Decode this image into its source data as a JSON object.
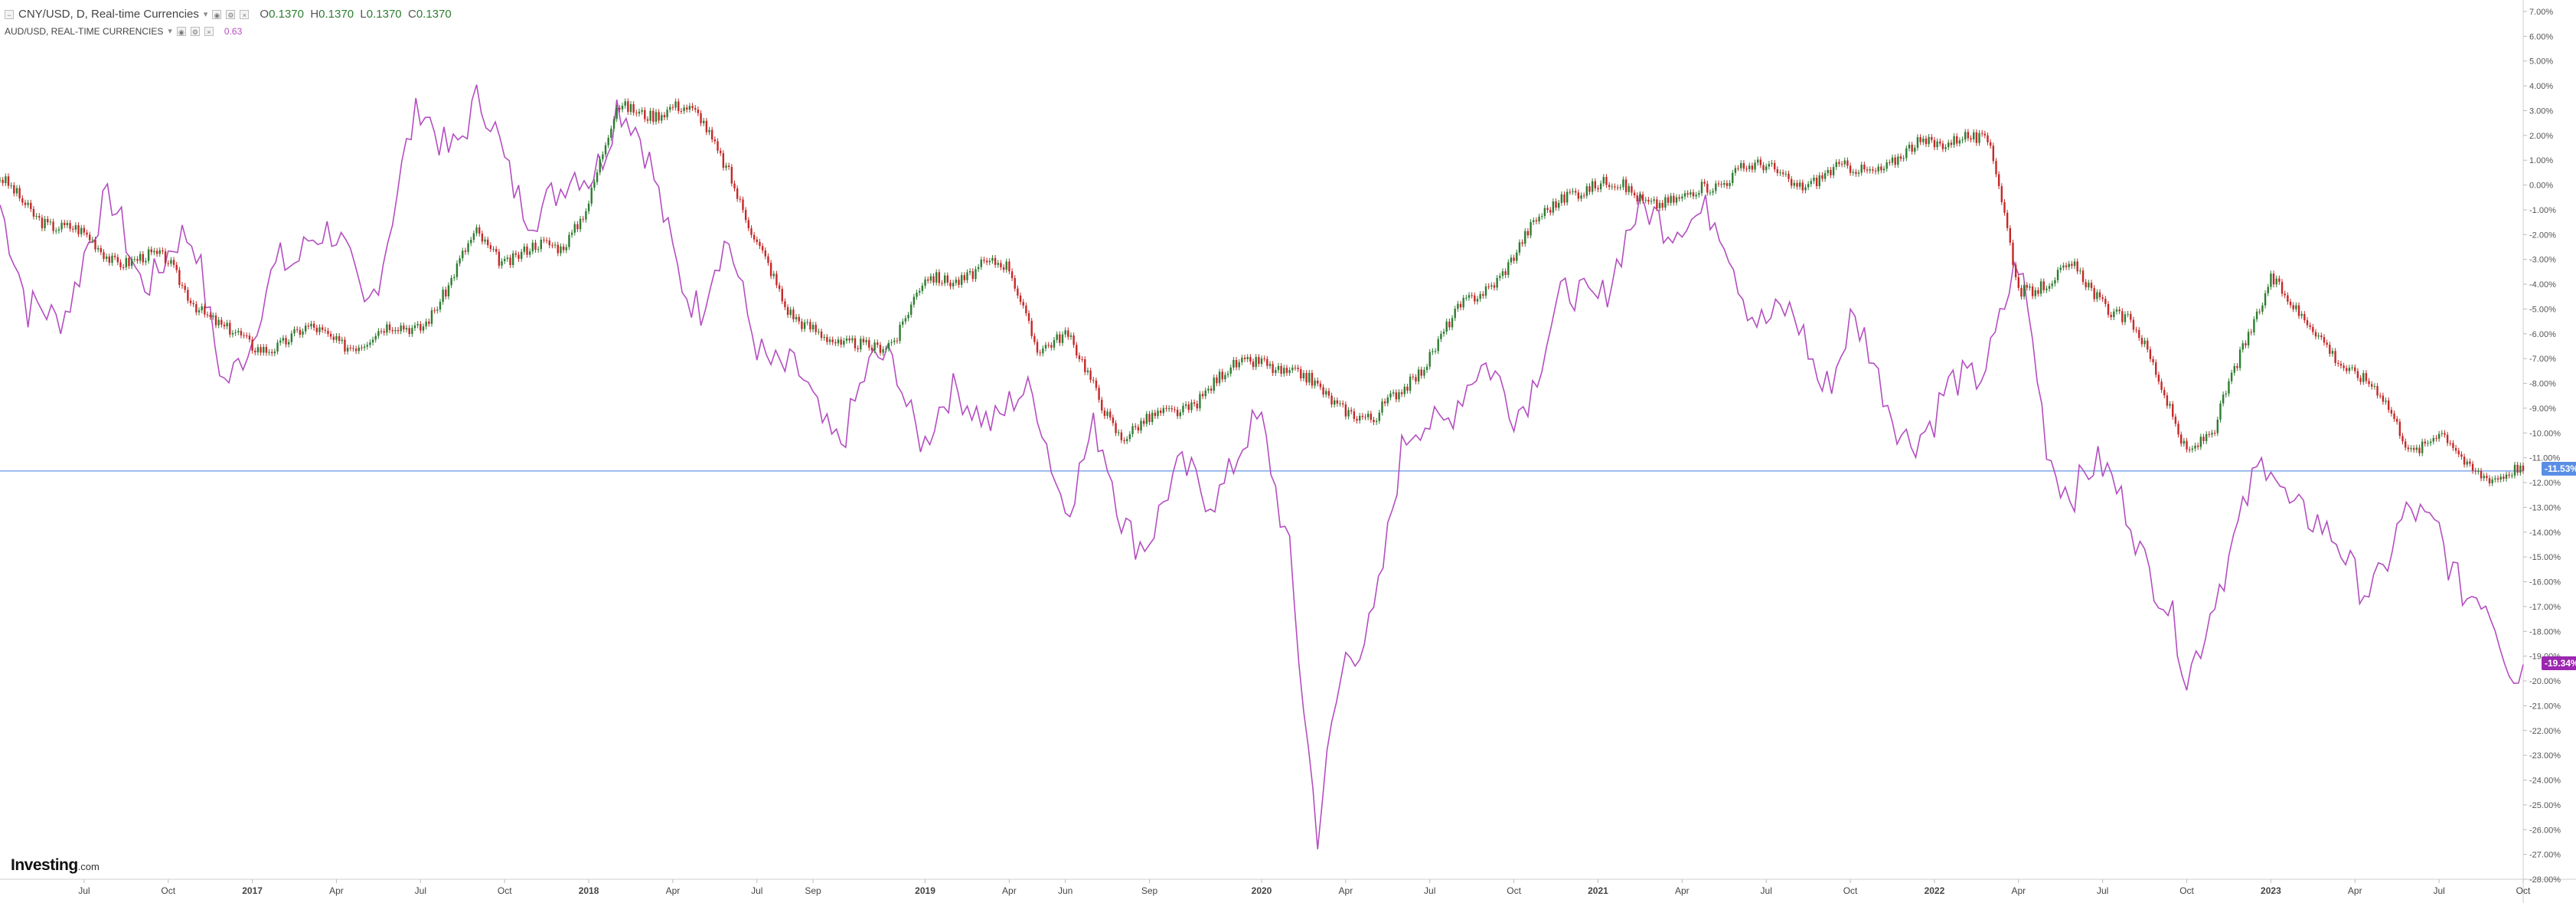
{
  "legend": {
    "main_title": "CNY/USD, D, Real-time Currencies",
    "ohlc": {
      "o_label": "O",
      "o": "0.1370",
      "h_label": "H",
      "h": "0.1370",
      "l_label": "L",
      "l": "0.1370",
      "c_label": "C",
      "c": "0.1370"
    },
    "secondary_title": "AUD/USD, REAL-TIME CURRENCIES",
    "secondary_value": "0.63"
  },
  "brand": {
    "name": "Investing",
    "suffix": ".com"
  },
  "price_tags": {
    "main": "-11.53%",
    "secondary": "-19.34%"
  },
  "colors": {
    "candle_up": "#2e7d32",
    "candle_down": "#c62828",
    "secondary_line": "#b44ec0",
    "price_line": "#7fa8e8",
    "tag_main": "#5a8ee6",
    "tag_sec": "#9c27b0"
  },
  "chart_data": {
    "type": "line",
    "ylabel_unit": "%",
    "ylim": [
      -28,
      7
    ],
    "y_ticks": [
      "7.00%",
      "6.00%",
      "5.00%",
      "4.00%",
      "3.00%",
      "2.00%",
      "1.00%",
      "0.00%",
      "-1.00%",
      "-2.00%",
      "-3.00%",
      "-4.00%",
      "-5.00%",
      "-6.00%",
      "-7.00%",
      "-8.00%",
      "-9.00%",
      "-10.00%",
      "-11.00%",
      "-12.00%",
      "-13.00%",
      "-14.00%",
      "-15.00%",
      "-16.00%",
      "-17.00%",
      "-18.00%",
      "-19.00%",
      "-20.00%",
      "-21.00%",
      "-22.00%",
      "-23.00%",
      "-24.00%",
      "-25.00%",
      "-26.00%",
      "-27.00%",
      "-28.00%"
    ],
    "x_ticks": [
      {
        "label": "Jul",
        "x": "2016-07"
      },
      {
        "label": "Oct",
        "x": "2016-10"
      },
      {
        "label": "2017",
        "x": "2017-01"
      },
      {
        "label": "Apr",
        "x": "2017-04"
      },
      {
        "label": "Jul",
        "x": "2017-07"
      },
      {
        "label": "Oct",
        "x": "2017-10"
      },
      {
        "label": "2018",
        "x": "2018-01"
      },
      {
        "label": "Apr",
        "x": "2018-04"
      },
      {
        "label": "Jul",
        "x": "2018-07"
      },
      {
        "label": "Sep",
        "x": "2018-09"
      },
      {
        "label": "2019",
        "x": "2019-01"
      },
      {
        "label": "Apr",
        "x": "2019-04"
      },
      {
        "label": "Jun",
        "x": "2019-06"
      },
      {
        "label": "Sep",
        "x": "2019-09"
      },
      {
        "label": "2020",
        "x": "2020-01"
      },
      {
        "label": "Apr",
        "x": "2020-04"
      },
      {
        "label": "Jul",
        "x": "2020-07"
      },
      {
        "label": "Oct",
        "x": "2020-10"
      },
      {
        "label": "2021",
        "x": "2021-01"
      },
      {
        "label": "Apr",
        "x": "2021-04"
      },
      {
        "label": "Jul",
        "x": "2021-07"
      },
      {
        "label": "Oct",
        "x": "2021-10"
      },
      {
        "label": "2022",
        "x": "2022-01"
      },
      {
        "label": "Apr",
        "x": "2022-04"
      },
      {
        "label": "Jul",
        "x": "2022-07"
      },
      {
        "label": "Oct",
        "x": "2022-10"
      },
      {
        "label": "2023",
        "x": "2023-01"
      },
      {
        "label": "Apr",
        "x": "2023-04"
      },
      {
        "label": "Jul",
        "x": "2023-07"
      },
      {
        "label": "Oct",
        "x": "2023-10"
      }
    ],
    "x_range": [
      "2016-04",
      "2023-10"
    ],
    "series": [
      {
        "name": "CNY/USD",
        "style": "candlestick",
        "points": [
          [
            "2016-04",
            0.0
          ],
          [
            "2016-06",
            -1.6
          ],
          [
            "2016-08",
            -2.8
          ],
          [
            "2016-10",
            -3.2
          ],
          [
            "2016-12",
            -6.0
          ],
          [
            "2017-01",
            -6.5
          ],
          [
            "2017-03",
            -6.0
          ],
          [
            "2017-05",
            -6.3
          ],
          [
            "2017-07",
            -5.5
          ],
          [
            "2017-08",
            -4.2
          ],
          [
            "2017-09",
            -2.0
          ],
          [
            "2017-10",
            -2.9
          ],
          [
            "2017-12",
            -2.5
          ],
          [
            "2018-01",
            -0.5
          ],
          [
            "2018-02",
            2.9
          ],
          [
            "2018-04",
            3.2
          ],
          [
            "2018-05",
            2.5
          ],
          [
            "2018-06",
            0.8
          ],
          [
            "2018-07",
            -2.5
          ],
          [
            "2018-08",
            -5.0
          ],
          [
            "2018-09",
            -5.5
          ],
          [
            "2018-10",
            -6.8
          ],
          [
            "2018-12",
            -6.0
          ],
          [
            "2019-01",
            -4.0
          ],
          [
            "2019-03",
            -3.3
          ],
          [
            "2019-04",
            -3.5
          ],
          [
            "2019-05",
            -6.3
          ],
          [
            "2019-06",
            -6.2
          ],
          [
            "2019-08",
            -10.0
          ],
          [
            "2019-09",
            -9.7
          ],
          [
            "2019-11",
            -8.3
          ],
          [
            "2020-01",
            -6.8
          ],
          [
            "2020-02",
            -7.7
          ],
          [
            "2020-04",
            -8.8
          ],
          [
            "2020-05",
            -9.7
          ],
          [
            "2020-06",
            -8.2
          ],
          [
            "2020-08",
            -5.3
          ],
          [
            "2020-10",
            -2.8
          ],
          [
            "2020-12",
            0.0
          ],
          [
            "2021-02",
            -0.2
          ],
          [
            "2021-04",
            -0.8
          ],
          [
            "2021-06",
            0.8
          ],
          [
            "2021-08",
            0.2
          ],
          [
            "2021-10",
            0.5
          ],
          [
            "2022-01",
            1.6
          ],
          [
            "2022-02",
            2.3
          ],
          [
            "2022-03",
            1.4
          ],
          [
            "2022-04",
            -4.1
          ],
          [
            "2022-06",
            -3.6
          ],
          [
            "2022-08",
            -5.5
          ],
          [
            "2022-10",
            -10.5
          ],
          [
            "2022-11",
            -10.0
          ],
          [
            "2022-12",
            -6.6
          ],
          [
            "2023-01",
            -3.5
          ],
          [
            "2023-02",
            -5.5
          ],
          [
            "2023-03",
            -6.3
          ],
          [
            "2023-05",
            -8.8
          ],
          [
            "2023-06",
            -10.5
          ],
          [
            "2023-07",
            -10.0
          ],
          [
            "2023-08",
            -11.5
          ],
          [
            "2023-10",
            -11.53
          ]
        ]
      },
      {
        "name": "AUD/USD",
        "style": "line",
        "points": [
          [
            "2016-04",
            0.0
          ],
          [
            "2016-05",
            -6.0
          ],
          [
            "2016-06",
            -5.0
          ],
          [
            "2016-07",
            -2.5
          ],
          [
            "2016-08",
            -1.5
          ],
          [
            "2016-09",
            -3.0
          ],
          [
            "2016-11",
            -3.0
          ],
          [
            "2016-12",
            -7.0
          ],
          [
            "2017-01",
            -7.0
          ],
          [
            "2017-02",
            -3.0
          ],
          [
            "2017-03",
            -1.5
          ],
          [
            "2017-05",
            -4.5
          ],
          [
            "2017-06",
            -1.0
          ],
          [
            "2017-07",
            2.4
          ],
          [
            "2017-08",
            2.3
          ],
          [
            "2017-09",
            3.0
          ],
          [
            "2017-10",
            0.5
          ],
          [
            "2017-12",
            -1.0
          ],
          [
            "2018-01",
            0.5
          ],
          [
            "2018-02",
            3.8
          ],
          [
            "2018-03",
            0.5
          ],
          [
            "2018-04",
            -2.0
          ],
          [
            "2018-05",
            -5.0
          ],
          [
            "2018-06",
            -3.0
          ],
          [
            "2018-07",
            -5.5
          ],
          [
            "2018-08",
            -8.0
          ],
          [
            "2018-09",
            -9.0
          ],
          [
            "2018-10",
            -9.5
          ],
          [
            "2018-12",
            -7.0
          ],
          [
            "2019-01",
            -10.0
          ],
          [
            "2019-03",
            -8.5
          ],
          [
            "2019-04",
            -9.0
          ],
          [
            "2019-05",
            -9.5
          ],
          [
            "2019-06",
            -12.0
          ],
          [
            "2019-07",
            -10.5
          ],
          [
            "2019-08",
            -13.5
          ],
          [
            "2019-09",
            -13.5
          ],
          [
            "2019-10",
            -12.5
          ],
          [
            "2019-11",
            -12.0
          ],
          [
            "2019-12",
            -11.0
          ],
          [
            "2020-01",
            -10.5
          ],
          [
            "2020-02",
            -14.0
          ],
          [
            "2020-03",
            -26.5
          ],
          [
            "2020-04",
            -19.5
          ],
          [
            "2020-05",
            -16.5
          ],
          [
            "2020-06",
            -11.5
          ],
          [
            "2020-07",
            -9.5
          ],
          [
            "2020-08",
            -8.0
          ],
          [
            "2020-10",
            -8.5
          ],
          [
            "2020-12",
            -5.0
          ],
          [
            "2021-02",
            -2.5
          ],
          [
            "2021-04",
            -0.5
          ],
          [
            "2021-05",
            -2.0
          ],
          [
            "2021-07",
            -5.0
          ],
          [
            "2021-09",
            -7.5
          ],
          [
            "2021-10",
            -5.5
          ],
          [
            "2021-11",
            -8.5
          ],
          [
            "2022-01",
            -10.0
          ],
          [
            "2022-03",
            -6.0
          ],
          [
            "2022-04",
            -4.0
          ],
          [
            "2022-05",
            -10.0
          ],
          [
            "2022-06",
            -12.0
          ],
          [
            "2022-08",
            -12.5
          ],
          [
            "2022-10",
            -20.5
          ],
          [
            "2022-11",
            -15.5
          ],
          [
            "2022-12",
            -14.0
          ],
          [
            "2023-01",
            -11.0
          ],
          [
            "2023-02",
            -12.5
          ],
          [
            "2023-03",
            -15.0
          ],
          [
            "2023-05",
            -15.5
          ],
          [
            "2023-06",
            -14.0
          ],
          [
            "2023-07",
            -13.0
          ],
          [
            "2023-08",
            -17.0
          ],
          [
            "2023-09",
            -18.0
          ],
          [
            "2023-10",
            -19.34
          ]
        ]
      }
    ],
    "price_line": -11.53,
    "grid": false,
    "legend_position": "top-left"
  }
}
